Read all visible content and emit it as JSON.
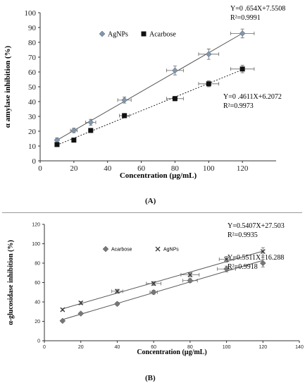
{
  "chart_data": [
    {
      "type": "scatter",
      "xlabel": "Concentration (µg/mL)",
      "ylabel": "α amylase inhibition (%)",
      "xlim": [
        0,
        140
      ],
      "ylim": [
        0,
        100
      ],
      "x_ticks": [
        0,
        20,
        40,
        60,
        80,
        100,
        120
      ],
      "y_ticks": [
        0,
        10,
        20,
        30,
        40,
        50,
        60,
        70,
        80,
        90,
        100
      ],
      "grid": false,
      "legend_position": "top-left",
      "x": [
        10,
        20,
        30,
        50,
        80,
        100,
        120
      ],
      "series": [
        {
          "name": "AgNPs",
          "marker": "diamond",
          "line": "solid",
          "color": "#7e97b3",
          "values": [
            14,
            20.5,
            26,
            41,
            61,
            72,
            86
          ],
          "y_err": [
            1.5,
            1.5,
            2,
            2,
            3,
            3.5,
            3
          ],
          "x_err": [
            0,
            2,
            3,
            4,
            5,
            6,
            7
          ]
        },
        {
          "name": "Acarbose",
          "marker": "square",
          "line": "dotted",
          "color": "#111111",
          "values": [
            11,
            14,
            20.5,
            30.5,
            42,
            52,
            62
          ],
          "y_err": [
            0,
            0,
            1,
            1.5,
            1.5,
            2,
            2.5
          ],
          "x_err": [
            0,
            0,
            0,
            3,
            5,
            6,
            7
          ]
        }
      ],
      "annotations": [
        {
          "eq": "Y=0 .654X+7.5508",
          "r2": "R²=0.9991"
        },
        {
          "eq": "Y=0 .4611X+6.2072",
          "r2": "R²=0.9973"
        }
      ],
      "panel_label": "(A)"
    },
    {
      "type": "scatter",
      "xlabel": "Concentration (µg/mL)",
      "ylabel": "α-glucosidase inhibition (%)",
      "xlim": [
        0,
        140
      ],
      "ylim": [
        0,
        120
      ],
      "x_ticks": [
        0,
        20,
        40,
        60,
        80,
        100,
        120,
        140
      ],
      "y_ticks": [
        0,
        20,
        40,
        60,
        80,
        100,
        120
      ],
      "grid": false,
      "legend_position": "top-left",
      "x": [
        10,
        20,
        40,
        60,
        80,
        100,
        120
      ],
      "series": [
        {
          "name": "Acarbose",
          "marker": "diamond",
          "line": "solid",
          "color": "#777777",
          "values": [
            20.5,
            28,
            38,
            50,
            62,
            74,
            80
          ],
          "y_err": [
            1,
            1,
            1.5,
            2,
            2,
            3,
            4
          ],
          "x_err": [
            0,
            0,
            0,
            2,
            4,
            5,
            0
          ]
        },
        {
          "name": "AgNPs",
          "marker": "cross",
          "line": "solid",
          "color": "#3b3b3b",
          "values": [
            32,
            39,
            51,
            59,
            68,
            84,
            92
          ],
          "y_err": [
            1,
            1.5,
            2,
            2,
            2,
            3,
            4
          ],
          "x_err": [
            0,
            0,
            3,
            4,
            5,
            4,
            0
          ]
        }
      ],
      "annotations": [
        {
          "eq": "Y=0.5407X+27.503",
          "r2": "R²=0.9935"
        },
        {
          "eq": "Y=0.5511X+16.288",
          "r2": "R²=0.9918"
        }
      ],
      "panel_label": "(B)"
    }
  ]
}
